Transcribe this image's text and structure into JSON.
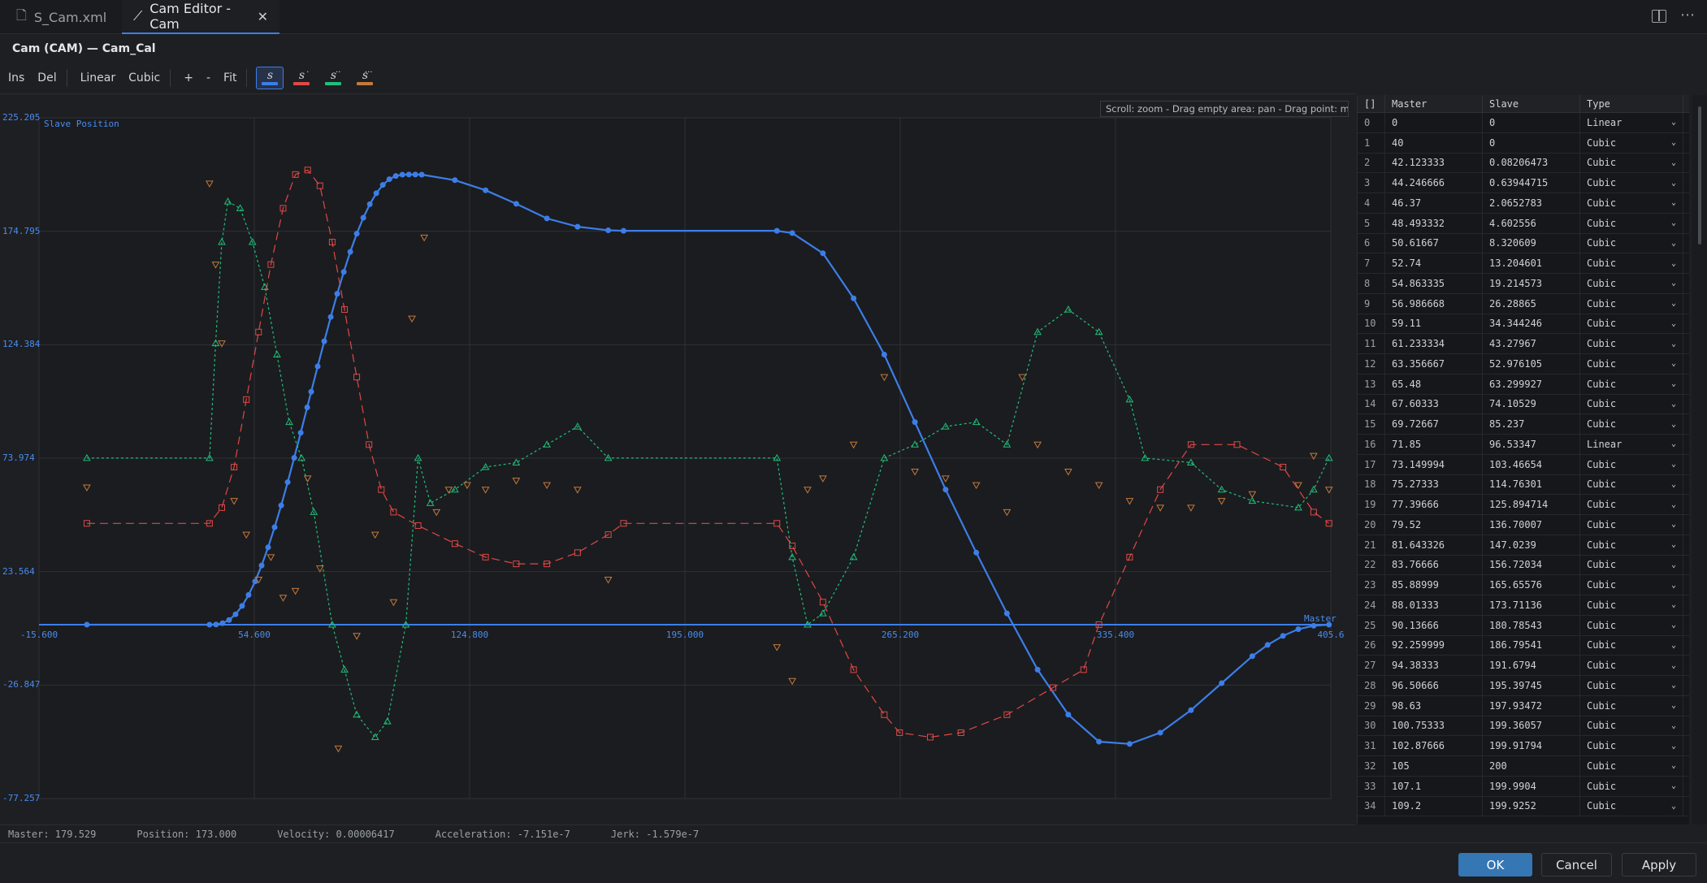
{
  "tabs": [
    {
      "label": "S_Cam.xml",
      "icon": "file-icon"
    },
    {
      "label": "Cam Editor - Cam",
      "icon": "chart-icon",
      "active": true
    }
  ],
  "editor_title": "Cam (CAM) — Cam_Cal",
  "toolbar": {
    "ins": "Ins",
    "del": "Del",
    "linear": "Linear",
    "cubic": "Cubic",
    "zoom_in": "+",
    "zoom_out": "-",
    "fit": "Fit",
    "toggles": [
      {
        "name": "position",
        "label": "s",
        "mark": "",
        "color": "#3c7ee8",
        "active": true
      },
      {
        "name": "velocity",
        "label": "s",
        "mark": "·",
        "color": "#e04848"
      },
      {
        "name": "acceleration",
        "label": "s",
        "mark": "··",
        "color": "#1fbf7a"
      },
      {
        "name": "jerk",
        "label": "s",
        "mark": "···",
        "color": "#c27a3c"
      }
    ]
  },
  "chart_hint": "Scroll: zoom - Drag empty area: pan - Drag point: move",
  "chart_data": {
    "type": "line",
    "ylabel": "Slave Position",
    "xlabel": "Master",
    "xlim": [
      -15.6,
      405.6
    ],
    "ylim": [
      -77.257,
      225.205
    ],
    "x_ticks": [
      "-15.600",
      "54.600",
      "124.800",
      "195.000",
      "265.200",
      "335.400",
      "405.6"
    ],
    "y_ticks": [
      "225.205",
      "174.795",
      "124.384",
      "73.974",
      "23.564",
      "-26.847",
      "-77.257"
    ],
    "series": [
      {
        "name": "Position",
        "color": "#3c7ee8",
        "points": [
          [
            0,
            0
          ],
          [
            40,
            0
          ],
          [
            42.12,
            0.08
          ],
          [
            44.25,
            0.64
          ],
          [
            46.37,
            2.07
          ],
          [
            48.49,
            4.6
          ],
          [
            50.62,
            8.32
          ],
          [
            52.74,
            13.2
          ],
          [
            54.86,
            19.21
          ],
          [
            56.99,
            26.29
          ],
          [
            59.11,
            34.34
          ],
          [
            61.23,
            43.28
          ],
          [
            63.36,
            52.98
          ],
          [
            65.48,
            63.3
          ],
          [
            67.6,
            74.11
          ],
          [
            69.73,
            85.24
          ],
          [
            71.85,
            96.53
          ],
          [
            73.15,
            103.47
          ],
          [
            75.27,
            114.76
          ],
          [
            77.4,
            125.89
          ],
          [
            79.52,
            136.7
          ],
          [
            81.64,
            147.02
          ],
          [
            83.77,
            156.72
          ],
          [
            85.89,
            165.66
          ],
          [
            88.01,
            173.71
          ],
          [
            90.14,
            180.79
          ],
          [
            92.26,
            186.8
          ],
          [
            94.38,
            191.68
          ],
          [
            96.51,
            195.4
          ],
          [
            98.63,
            197.93
          ],
          [
            100.75,
            199.36
          ],
          [
            102.88,
            199.92
          ],
          [
            105,
            200
          ],
          [
            107.1,
            199.99
          ],
          [
            109.2,
            199.93
          ],
          [
            120,
            197.5
          ],
          [
            130,
            193
          ],
          [
            140,
            187
          ],
          [
            150,
            180.5
          ],
          [
            160,
            176.8
          ],
          [
            170,
            175.2
          ],
          [
            175,
            175
          ],
          [
            225,
            175
          ],
          [
            230,
            174
          ],
          [
            240,
            165
          ],
          [
            250,
            145
          ],
          [
            260,
            120
          ],
          [
            270,
            90
          ],
          [
            280,
            60
          ],
          [
            290,
            32
          ],
          [
            300,
            5
          ],
          [
            310,
            -20
          ],
          [
            320,
            -40
          ],
          [
            330,
            -52
          ],
          [
            340,
            -53
          ],
          [
            350,
            -48
          ],
          [
            360,
            -38
          ],
          [
            370,
            -26
          ],
          [
            380,
            -14
          ],
          [
            385,
            -9
          ],
          [
            390,
            -5
          ],
          [
            395,
            -2
          ],
          [
            400,
            -0.5
          ],
          [
            405,
            0
          ]
        ]
      },
      {
        "name": "Velocity",
        "color": "#e04848",
        "points": [
          [
            0,
            45
          ],
          [
            40,
            45
          ],
          [
            44,
            52
          ],
          [
            48,
            70
          ],
          [
            52,
            100
          ],
          [
            56,
            130
          ],
          [
            60,
            160
          ],
          [
            64,
            185
          ],
          [
            68,
            200
          ],
          [
            72,
            202
          ],
          [
            76,
            195
          ],
          [
            80,
            170
          ],
          [
            84,
            140
          ],
          [
            88,
            110
          ],
          [
            92,
            80
          ],
          [
            96,
            60
          ],
          [
            100,
            50
          ],
          [
            108,
            44
          ],
          [
            120,
            36
          ],
          [
            130,
            30
          ],
          [
            140,
            27
          ],
          [
            150,
            27
          ],
          [
            160,
            32
          ],
          [
            170,
            40
          ],
          [
            175,
            45
          ],
          [
            225,
            45
          ],
          [
            230,
            35
          ],
          [
            240,
            10
          ],
          [
            250,
            -20
          ],
          [
            260,
            -40
          ],
          [
            265,
            -48
          ],
          [
            275,
            -50
          ],
          [
            285,
            -48
          ],
          [
            300,
            -40
          ],
          [
            315,
            -28
          ],
          [
            325,
            -20
          ],
          [
            330,
            0
          ],
          [
            340,
            30
          ],
          [
            350,
            60
          ],
          [
            360,
            80
          ],
          [
            375,
            80
          ],
          [
            390,
            70
          ],
          [
            400,
            50
          ],
          [
            405,
            45
          ]
        ]
      },
      {
        "name": "Acceleration",
        "color": "#1fbf7a",
        "points": [
          [
            0,
            74
          ],
          [
            40,
            74
          ],
          [
            42,
            125
          ],
          [
            44,
            170
          ],
          [
            46,
            188
          ],
          [
            50,
            185
          ],
          [
            54,
            170
          ],
          [
            58,
            150
          ],
          [
            62,
            120
          ],
          [
            66,
            90
          ],
          [
            70,
            74
          ],
          [
            74,
            50
          ],
          [
            80,
            0
          ],
          [
            84,
            -20
          ],
          [
            88,
            -40
          ],
          [
            94,
            -50
          ],
          [
            98,
            -43
          ],
          [
            104,
            0
          ],
          [
            108,
            74
          ],
          [
            112,
            54
          ],
          [
            120,
            60
          ],
          [
            130,
            70
          ],
          [
            140,
            72
          ],
          [
            150,
            80
          ],
          [
            160,
            88
          ],
          [
            170,
            74
          ],
          [
            225,
            74
          ],
          [
            230,
            30
          ],
          [
            235,
            0
          ],
          [
            240,
            5
          ],
          [
            250,
            30
          ],
          [
            260,
            74
          ],
          [
            270,
            80
          ],
          [
            280,
            88
          ],
          [
            290,
            90
          ],
          [
            300,
            80
          ],
          [
            310,
            130
          ],
          [
            320,
            140
          ],
          [
            330,
            130
          ],
          [
            340,
            100
          ],
          [
            345,
            74
          ],
          [
            360,
            72
          ],
          [
            370,
            60
          ],
          [
            380,
            55
          ],
          [
            395,
            52
          ],
          [
            400,
            60
          ],
          [
            405,
            74
          ]
        ]
      },
      {
        "name": "Jerk",
        "color": "#c27a3c",
        "points": [
          [
            0,
            61
          ],
          [
            40,
            196
          ],
          [
            42,
            160
          ],
          [
            44,
            125
          ],
          [
            48,
            55
          ],
          [
            52,
            40
          ],
          [
            56,
            20
          ],
          [
            60,
            30
          ],
          [
            64,
            12
          ],
          [
            68,
            15
          ],
          [
            72,
            65
          ],
          [
            76,
            25
          ],
          [
            82,
            -55
          ],
          [
            88,
            -5
          ],
          [
            94,
            40
          ],
          [
            100,
            10
          ],
          [
            106,
            136
          ],
          [
            110,
            172
          ],
          [
            114,
            50
          ],
          [
            118,
            60
          ],
          [
            124,
            62
          ],
          [
            130,
            60
          ],
          [
            140,
            64
          ],
          [
            150,
            62
          ],
          [
            160,
            60
          ],
          [
            170,
            20
          ],
          [
            225,
            -10
          ],
          [
            230,
            -25
          ],
          [
            235,
            60
          ],
          [
            240,
            65
          ],
          [
            250,
            80
          ],
          [
            260,
            110
          ],
          [
            270,
            68
          ],
          [
            280,
            65
          ],
          [
            290,
            62
          ],
          [
            300,
            50
          ],
          [
            305,
            110
          ],
          [
            310,
            80
          ],
          [
            320,
            68
          ],
          [
            330,
            62
          ],
          [
            340,
            55
          ],
          [
            350,
            52
          ],
          [
            360,
            52
          ],
          [
            370,
            55
          ],
          [
            380,
            58
          ],
          [
            395,
            62
          ],
          [
            400,
            75
          ],
          [
            405,
            60
          ]
        ]
      }
    ]
  },
  "status": {
    "master": "Master: 179.529",
    "position": "Position: 173.000",
    "velocity": "Velocity: 0.00006417",
    "acceleration": "Acceleration: -7.151e-7",
    "jerk": "Jerk: -1.579e-7"
  },
  "table": {
    "headers": [
      "[]",
      "Master",
      "Slave",
      "Type"
    ],
    "rows": [
      [
        "0",
        "0",
        "0",
        "Linear"
      ],
      [
        "1",
        "40",
        "0",
        "Cubic"
      ],
      [
        "2",
        "42.123333",
        "0.08206473",
        "Cubic"
      ],
      [
        "3",
        "44.246666",
        "0.63944715",
        "Cubic"
      ],
      [
        "4",
        "46.37",
        "2.0652783",
        "Cubic"
      ],
      [
        "5",
        "48.493332",
        "4.602556",
        "Cubic"
      ],
      [
        "6",
        "50.61667",
        "8.320609",
        "Cubic"
      ],
      [
        "7",
        "52.74",
        "13.204601",
        "Cubic"
      ],
      [
        "8",
        "54.863335",
        "19.214573",
        "Cubic"
      ],
      [
        "9",
        "56.986668",
        "26.28865",
        "Cubic"
      ],
      [
        "10",
        "59.11",
        "34.344246",
        "Cubic"
      ],
      [
        "11",
        "61.233334",
        "43.27967",
        "Cubic"
      ],
      [
        "12",
        "63.356667",
        "52.976105",
        "Cubic"
      ],
      [
        "13",
        "65.48",
        "63.299927",
        "Cubic"
      ],
      [
        "14",
        "67.60333",
        "74.10529",
        "Cubic"
      ],
      [
        "15",
        "69.72667",
        "85.237",
        "Cubic"
      ],
      [
        "16",
        "71.85",
        "96.53347",
        "Linear"
      ],
      [
        "17",
        "73.149994",
        "103.46654",
        "Cubic"
      ],
      [
        "18",
        "75.27333",
        "114.76301",
        "Cubic"
      ],
      [
        "19",
        "77.39666",
        "125.894714",
        "Cubic"
      ],
      [
        "20",
        "79.52",
        "136.70007",
        "Cubic"
      ],
      [
        "21",
        "81.643326",
        "147.0239",
        "Cubic"
      ],
      [
        "22",
        "83.76666",
        "156.72034",
        "Cubic"
      ],
      [
        "23",
        "85.88999",
        "165.65576",
        "Cubic"
      ],
      [
        "24",
        "88.01333",
        "173.71136",
        "Cubic"
      ],
      [
        "25",
        "90.13666",
        "180.78543",
        "Cubic"
      ],
      [
        "26",
        "92.259999",
        "186.79541",
        "Cubic"
      ],
      [
        "27",
        "94.38333",
        "191.6794",
        "Cubic"
      ],
      [
        "28",
        "96.50666",
        "195.39745",
        "Cubic"
      ],
      [
        "29",
        "98.63",
        "197.93472",
        "Cubic"
      ],
      [
        "30",
        "100.75333",
        "199.36057",
        "Cubic"
      ],
      [
        "31",
        "102.87666",
        "199.91794",
        "Cubic"
      ],
      [
        "32",
        "105",
        "200",
        "Cubic"
      ],
      [
        "33",
        "107.1",
        "199.9904",
        "Cubic"
      ],
      [
        "34",
        "109.2",
        "199.9252",
        "Cubic"
      ]
    ]
  },
  "buttons": {
    "ok": "OK",
    "cancel": "Cancel",
    "apply": "Apply"
  }
}
